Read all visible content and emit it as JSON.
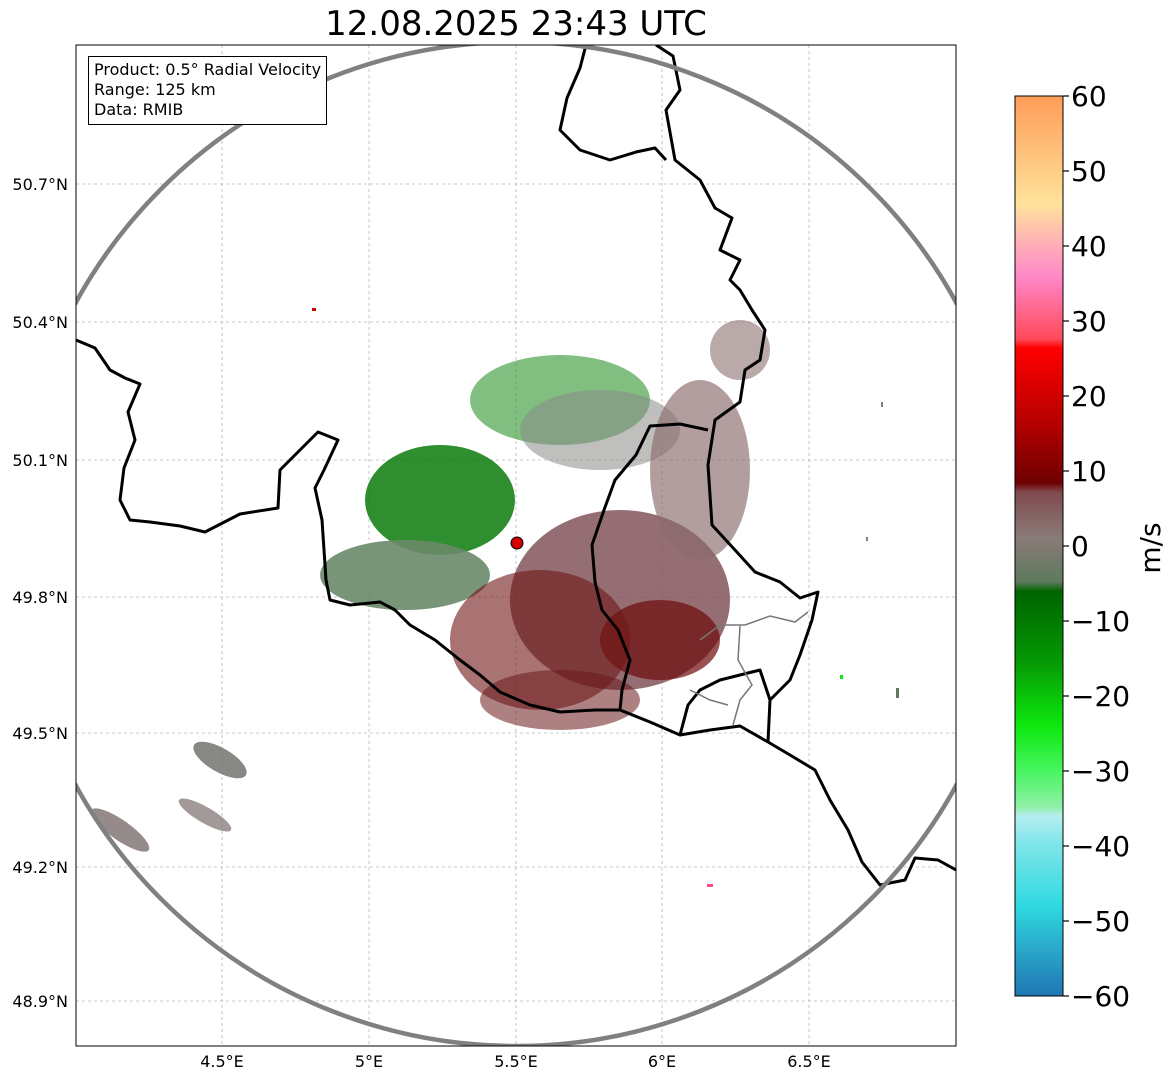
{
  "title": "12.08.2025 23:43 UTC",
  "info": {
    "product": "Product: 0.5° Radial Velocity",
    "range": "Range: 125 km",
    "data": "Data: RMIB"
  },
  "lat_ticks": [
    "50.7°N",
    "50.4°N",
    "50.1°N",
    "49.8°N",
    "49.5°N",
    "49.2°N",
    "48.9°N"
  ],
  "lon_ticks": [
    "4.5°E",
    "5°E",
    "5.5°E",
    "6°E",
    "6.5°E"
  ],
  "colorbar": {
    "label": "m/s",
    "ticks": [
      "60",
      "50",
      "40",
      "30",
      "20",
      "10",
      "0",
      "−10",
      "−20",
      "−30",
      "−40",
      "−50",
      "−60"
    ]
  },
  "colors": {
    "range_ring": "#808080",
    "border": "#000000",
    "radar_site": "#d40000"
  }
}
